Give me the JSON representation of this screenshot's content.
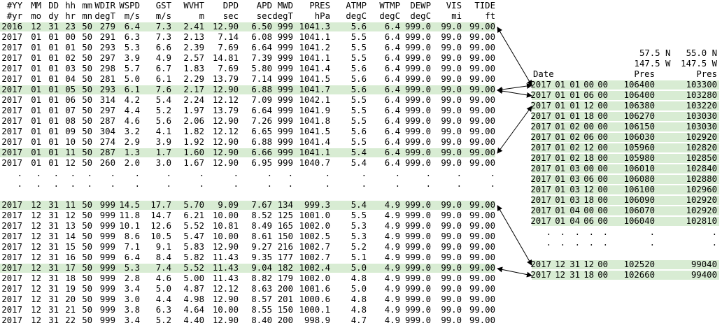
{
  "left_table": {
    "header_names": [
      "#YY",
      "MM",
      "DD",
      "hh",
      "mm",
      "WDIR",
      "WSPD",
      "GST",
      "WVHT",
      "DPD",
      "APD",
      "MWD",
      "PRES",
      "ATMP",
      "WTMP",
      "DEWP",
      "VIS",
      "TIDE"
    ],
    "header_units": [
      "#yr",
      "mo",
      "dy",
      "hr",
      "mn",
      "degT",
      "m/s",
      "m/s",
      "m",
      "sec",
      "sec",
      "degT",
      "hPa",
      "degC",
      "degC",
      "degC",
      "mi",
      "ft"
    ],
    "rows_top": [
      [
        "2016",
        "12",
        "31",
        "23",
        "50",
        "279",
        "6.4",
        "7.3",
        "2.41",
        "12.90",
        "6.50",
        "999",
        "1041.3",
        "5.6",
        "6.4",
        "999.0",
        "99.0",
        "99.00"
      ],
      [
        "2017",
        "01",
        "01",
        "00",
        "50",
        "291",
        "6.3",
        "7.3",
        "2.13",
        "7.14",
        "6.08",
        "999",
        "1041.1",
        "5.5",
        "6.4",
        "999.0",
        "99.0",
        "99.00"
      ],
      [
        "2017",
        "01",
        "01",
        "01",
        "50",
        "293",
        "5.3",
        "6.6",
        "2.39",
        "7.69",
        "6.64",
        "999",
        "1041.2",
        "5.5",
        "6.4",
        "999.0",
        "99.0",
        "99.00"
      ],
      [
        "2017",
        "01",
        "01",
        "02",
        "50",
        "297",
        "3.9",
        "4.9",
        "2.57",
        "14.81",
        "7.39",
        "999",
        "1041.1",
        "5.5",
        "6.4",
        "999.0",
        "99.0",
        "99.00"
      ],
      [
        "2017",
        "01",
        "01",
        "03",
        "50",
        "298",
        "5.7",
        "6.7",
        "1.83",
        "7.69",
        "5.80",
        "999",
        "1041.4",
        "5.6",
        "6.4",
        "999.0",
        "99.0",
        "99.00"
      ],
      [
        "2017",
        "01",
        "01",
        "04",
        "50",
        "281",
        "5.0",
        "6.1",
        "2.29",
        "13.79",
        "7.14",
        "999",
        "1041.5",
        "5.6",
        "6.4",
        "999.0",
        "99.0",
        "99.00"
      ],
      [
        "2017",
        "01",
        "01",
        "05",
        "50",
        "293",
        "6.1",
        "7.6",
        "2.17",
        "12.90",
        "6.88",
        "999",
        "1041.7",
        "5.6",
        "6.4",
        "999.0",
        "99.0",
        "99.00"
      ],
      [
        "2017",
        "01",
        "01",
        "06",
        "50",
        "314",
        "4.2",
        "5.4",
        "2.24",
        "12.12",
        "7.09",
        "999",
        "1042.1",
        "5.5",
        "6.4",
        "999.0",
        "99.0",
        "99.00"
      ],
      [
        "2017",
        "01",
        "01",
        "07",
        "50",
        "297",
        "4.4",
        "5.2",
        "1.97",
        "13.79",
        "6.64",
        "999",
        "1041.9",
        "5.5",
        "6.4",
        "999.0",
        "99.0",
        "99.00"
      ],
      [
        "2017",
        "01",
        "01",
        "08",
        "50",
        "287",
        "4.6",
        "5.6",
        "2.06",
        "12.90",
        "7.26",
        "999",
        "1041.8",
        "5.5",
        "6.4",
        "999.0",
        "99.0",
        "99.00"
      ],
      [
        "2017",
        "01",
        "01",
        "09",
        "50",
        "304",
        "3.2",
        "4.1",
        "1.82",
        "12.12",
        "6.65",
        "999",
        "1041.5",
        "5.6",
        "6.4",
        "999.0",
        "99.0",
        "99.00"
      ],
      [
        "2017",
        "01",
        "01",
        "10",
        "50",
        "274",
        "2.9",
        "3.9",
        "1.92",
        "12.90",
        "6.88",
        "999",
        "1041.4",
        "5.5",
        "6.4",
        "999.0",
        "99.0",
        "99.00"
      ],
      [
        "2017",
        "01",
        "01",
        "11",
        "50",
        "287",
        "1.3",
        "1.7",
        "1.60",
        "12.90",
        "6.66",
        "999",
        "1041.1",
        "5.4",
        "6.4",
        "999.0",
        "99.0",
        "99.00"
      ],
      [
        "2017",
        "01",
        "01",
        "12",
        "50",
        "260",
        "2.0",
        "3.0",
        "1.67",
        "12.90",
        "6.95",
        "999",
        "1040.7",
        "5.4",
        "6.4",
        "999.0",
        "99.0",
        "99.00"
      ]
    ],
    "rows_bottom": [
      [
        "2017",
        "12",
        "31",
        "11",
        "50",
        "999",
        "14.5",
        "17.7",
        "5.70",
        "9.09",
        "7.67",
        "134",
        "999.3",
        "5.4",
        "4.9",
        "999.0",
        "99.0",
        "99.00"
      ],
      [
        "2017",
        "12",
        "31",
        "12",
        "50",
        "999",
        "11.8",
        "14.7",
        "6.21",
        "10.00",
        "8.52",
        "125",
        "1001.0",
        "5.5",
        "4.9",
        "999.0",
        "99.0",
        "99.00"
      ],
      [
        "2017",
        "12",
        "31",
        "13",
        "50",
        "999",
        "10.1",
        "12.6",
        "5.52",
        "10.81",
        "8.49",
        "165",
        "1002.0",
        "5.3",
        "4.9",
        "999.0",
        "99.0",
        "99.00"
      ],
      [
        "2017",
        "12",
        "31",
        "14",
        "50",
        "999",
        "8.6",
        "10.5",
        "5.47",
        "10.00",
        "8.61",
        "150",
        "1002.5",
        "5.3",
        "4.9",
        "999.0",
        "99.0",
        "99.00"
      ],
      [
        "2017",
        "12",
        "31",
        "15",
        "50",
        "999",
        "7.1",
        "9.1",
        "5.83",
        "12.90",
        "9.27",
        "216",
        "1002.7",
        "5.2",
        "4.9",
        "999.0",
        "99.0",
        "99.00"
      ],
      [
        "2017",
        "12",
        "31",
        "16",
        "50",
        "999",
        "6.4",
        "8.4",
        "5.82",
        "11.43",
        "9.35",
        "177",
        "1002.7",
        "5.1",
        "4.9",
        "999.0",
        "99.0",
        "99.00"
      ],
      [
        "2017",
        "12",
        "31",
        "17",
        "50",
        "999",
        "5.3",
        "7.4",
        "5.52",
        "11.43",
        "9.04",
        "182",
        "1002.4",
        "5.0",
        "4.9",
        "999.0",
        "99.0",
        "99.00"
      ],
      [
        "2017",
        "12",
        "31",
        "18",
        "50",
        "999",
        "2.8",
        "4.6",
        "5.00",
        "11.43",
        "8.82",
        "179",
        "1002.0",
        "4.8",
        "4.9",
        "999.0",
        "99.0",
        "99.00"
      ],
      [
        "2017",
        "12",
        "31",
        "19",
        "50",
        "999",
        "3.4",
        "5.0",
        "4.87",
        "12.12",
        "8.63",
        "200",
        "1001.6",
        "5.0",
        "4.9",
        "999.0",
        "99.0",
        "99.00"
      ],
      [
        "2017",
        "12",
        "31",
        "20",
        "50",
        "999",
        "3.0",
        "4.4",
        "4.98",
        "12.90",
        "8.57",
        "201",
        "1000.6",
        "4.8",
        "4.9",
        "999.0",
        "99.0",
        "99.00"
      ],
      [
        "2017",
        "12",
        "31",
        "21",
        "50",
        "999",
        "3.8",
        "6.3",
        "4.64",
        "10.00",
        "8.55",
        "150",
        "1000.1",
        "4.8",
        "4.9",
        "999.0",
        "99.0",
        "99.00"
      ],
      [
        "2017",
        "12",
        "31",
        "22",
        "50",
        "999",
        "3.4",
        "5.2",
        "4.40",
        "12.90",
        "8.40",
        "200",
        "998.9",
        "4.7",
        "4.9",
        "999.0",
        "99.0",
        "99.00"
      ]
    ],
    "highlight_top": [
      0,
      6,
      12
    ],
    "highlight_bottom": [
      0,
      6
    ],
    "ellipsis": "."
  },
  "right_table": {
    "lat_line": "   57.5 N   55.0 N",
    "lon_line": "  147.5 W  147.5 W",
    "date_label": "Date",
    "pres_label": "Pres",
    "col_a_label": "Pres",
    "col_b_label": "Pres",
    "rows_top": [
      [
        "2017",
        "01",
        "01",
        "00",
        "00",
        "106400",
        "103300"
      ],
      [
        "2017",
        "01",
        "01",
        "06",
        "00",
        "106400",
        "103280"
      ],
      [
        "2017",
        "01",
        "01",
        "12",
        "00",
        "106380",
        "103220"
      ],
      [
        "2017",
        "01",
        "01",
        "18",
        "00",
        "106270",
        "103030"
      ],
      [
        "2017",
        "01",
        "02",
        "00",
        "00",
        "106150",
        "103030"
      ],
      [
        "2017",
        "01",
        "02",
        "06",
        "00",
        "106030",
        "102920"
      ],
      [
        "2017",
        "01",
        "02",
        "12",
        "00",
        "105960",
        "102820"
      ],
      [
        "2017",
        "01",
        "02",
        "18",
        "00",
        "105980",
        "102850"
      ],
      [
        "2017",
        "01",
        "03",
        "00",
        "00",
        "106010",
        "102840"
      ],
      [
        "2017",
        "01",
        "03",
        "06",
        "00",
        "106080",
        "102880"
      ],
      [
        "2017",
        "01",
        "03",
        "12",
        "00",
        "106100",
        "102960"
      ],
      [
        "2017",
        "01",
        "03",
        "18",
        "00",
        "106090",
        "102920"
      ],
      [
        "2017",
        "01",
        "04",
        "00",
        "00",
        "106070",
        "102920"
      ],
      [
        "2017",
        "01",
        "04",
        "06",
        "00",
        "106040",
        "102810"
      ]
    ],
    "rows_bottom": [
      [
        "2017",
        "12",
        "31",
        "12",
        "00",
        "102520",
        "99040"
      ],
      [
        "2017",
        "12",
        "31",
        "18",
        "00",
        "102660",
        "99400"
      ]
    ]
  }
}
